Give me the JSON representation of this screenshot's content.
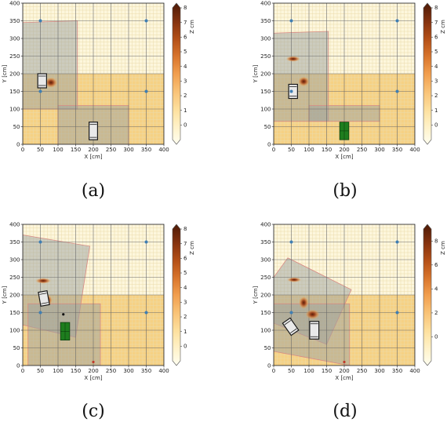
{
  "colors": {
    "background": "#fdf6dc",
    "floor_zone": "#f6cf7e",
    "fov": "#9ba1a0",
    "fov_edge": "#d98a84",
    "grid_major": "#6a6a6a",
    "grid_minor": "#ebdcab",
    "anchor": "#3f7fb3",
    "tag": "#c0392b",
    "robot_fill": "#e9e9e9",
    "robot_stroke": "#1a1a1a",
    "green_box": "#1e7d1e",
    "colormap": [
      "#fffdf0",
      "#fff2c8",
      "#fddf9c",
      "#f9c276",
      "#f19e4e",
      "#d8742b",
      "#b24e17",
      "#82300e",
      "#4d1a07"
    ]
  },
  "chart_data": [
    {
      "type": "heatmap",
      "caption": "(a)",
      "xlabel": "X [cm]",
      "ylabel": "Y [cm]",
      "colorbar_label": "Z cm",
      "xlim": [
        0,
        400
      ],
      "ylim": [
        0,
        400
      ],
      "xticks": [
        "0",
        "50",
        "100",
        "150",
        "200",
        "250",
        "300",
        "350",
        "400"
      ],
      "yticks": [
        "0",
        "50",
        "100",
        "150",
        "200",
        "250",
        "300",
        "350",
        "400"
      ],
      "colorbar_ticks": [
        "8",
        "7",
        "6",
        "5",
        "4",
        "3",
        "2",
        "1",
        "0"
      ],
      "colorbar_tick_positions": [
        8,
        7,
        6,
        5,
        4,
        3,
        2,
        1,
        0
      ],
      "colorbar_range": [
        -1,
        8
      ],
      "grid": true,
      "anchors": [
        [
          50,
          350
        ],
        [
          350,
          350
        ],
        [
          50,
          150
        ],
        [
          350,
          150
        ]
      ],
      "floor_zone": [
        [
          0,
          0
        ],
        [
          400,
          0
        ],
        [
          400,
          200
        ],
        [
          0,
          200
        ]
      ],
      "fov_polygons": [
        [
          [
            0,
            100
          ],
          [
            155,
            100
          ],
          [
            155,
            350
          ],
          [
            0,
            345
          ]
        ],
        [
          [
            100,
            0
          ],
          [
            300,
            0
          ],
          [
            300,
            110
          ],
          [
            100,
            110
          ]
        ]
      ],
      "hotspots": [
        {
          "x": 80,
          "y": 175,
          "rx": 18,
          "ry": 15,
          "z": 7
        }
      ],
      "robots": [
        {
          "x": 55,
          "y": 180,
          "w": 25,
          "h": 40,
          "angle": 0
        },
        {
          "x": 200,
          "y": 38,
          "w": 24,
          "h": 50,
          "angle": 0
        }
      ],
      "green_boxes": [],
      "tags": []
    },
    {
      "type": "heatmap",
      "caption": "(b)",
      "xlabel": "X [cm]",
      "ylabel": "Y [cm]",
      "colorbar_label": "Z cm",
      "xlim": [
        0,
        400
      ],
      "ylim": [
        0,
        400
      ],
      "xticks": [
        "0",
        "50",
        "100",
        "150",
        "200",
        "250",
        "300",
        "350",
        "400"
      ],
      "yticks": [
        "0",
        "50",
        "100",
        "150",
        "200",
        "250",
        "300",
        "350",
        "400"
      ],
      "colorbar_ticks": [
        "8",
        "7",
        "6",
        "5",
        "4",
        "3",
        "2",
        "1",
        "0"
      ],
      "colorbar_tick_positions": [
        8,
        7,
        6,
        5,
        4,
        3,
        2,
        1,
        0
      ],
      "colorbar_range": [
        -1,
        8
      ],
      "grid": true,
      "anchors": [
        [
          50,
          350
        ],
        [
          350,
          350
        ],
        [
          50,
          150
        ],
        [
          350,
          150
        ]
      ],
      "floor_zone": [
        [
          0,
          0
        ],
        [
          400,
          0
        ],
        [
          400,
          200
        ],
        [
          0,
          200
        ]
      ],
      "fov_polygons": [
        [
          [
            0,
            65
          ],
          [
            155,
            65
          ],
          [
            155,
            320
          ],
          [
            0,
            315
          ]
        ],
        [
          [
            100,
            65
          ],
          [
            300,
            65
          ],
          [
            300,
            110
          ],
          [
            100,
            110
          ]
        ]
      ],
      "hotspots": [
        {
          "x": 55,
          "y": 242,
          "rx": 20,
          "ry": 8,
          "z": 6
        },
        {
          "x": 85,
          "y": 178,
          "rx": 16,
          "ry": 14,
          "z": 6
        }
      ],
      "robots": [
        {
          "x": 55,
          "y": 150,
          "w": 25,
          "h": 40,
          "angle": 0
        }
      ],
      "green_boxes": [
        {
          "x": 200,
          "y": 38,
          "w": 26,
          "h": 50,
          "angle": 0
        }
      ],
      "tags": []
    },
    {
      "type": "heatmap",
      "caption": "(c)",
      "xlabel": "X [cm]",
      "ylabel": "Y [cm]",
      "colorbar_label": "Z cm",
      "xlim": [
        0,
        400
      ],
      "ylim": [
        0,
        400
      ],
      "xticks": [
        "0",
        "50",
        "100",
        "150",
        "200",
        "250",
        "300",
        "350",
        "400"
      ],
      "yticks": [
        "0",
        "50",
        "100",
        "150",
        "200",
        "250",
        "300",
        "350",
        "400"
      ],
      "colorbar_ticks": [
        "8",
        "7",
        "6",
        "5",
        "4",
        "3",
        "2",
        "1",
        "0"
      ],
      "colorbar_tick_positions": [
        8,
        7,
        6,
        5,
        4,
        3,
        2,
        1,
        0
      ],
      "colorbar_range": [
        -1,
        8
      ],
      "grid": true,
      "anchors": [
        [
          50,
          350
        ],
        [
          350,
          350
        ],
        [
          50,
          150
        ],
        [
          350,
          150
        ]
      ],
      "floor_zone": [
        [
          0,
          0
        ],
        [
          400,
          0
        ],
        [
          400,
          200
        ],
        [
          0,
          200
        ]
      ],
      "fov_polygons": [
        [
          [
            0,
            370
          ],
          [
            190,
            338
          ],
          [
            150,
            80
          ],
          [
            0,
            115
          ]
        ],
        [
          [
            15,
            175
          ],
          [
            220,
            175
          ],
          [
            220,
            0
          ],
          [
            15,
            0
          ]
        ]
      ],
      "hotspots": [
        {
          "x": 58,
          "y": 240,
          "rx": 22,
          "ry": 8,
          "z": 6
        },
        {
          "x": 70,
          "y": 185,
          "rx": 14,
          "ry": 16,
          "z": 6
        }
      ],
      "robots": [
        {
          "x": 60,
          "y": 190,
          "w": 25,
          "h": 40,
          "angle": 10
        }
      ],
      "green_boxes": [
        {
          "x": 120,
          "y": 97,
          "w": 26,
          "h": 50,
          "angle": 0
        }
      ],
      "tags": [
        {
          "x": 115,
          "y": 145,
          "color": "#111111"
        },
        {
          "x": 200,
          "y": 10,
          "color": "#c0392b"
        }
      ]
    },
    {
      "type": "heatmap",
      "caption": "(d)",
      "xlabel": "X [cm]",
      "ylabel": "Y [cm]",
      "colorbar_label": "Z cm",
      "xlim": [
        0,
        400
      ],
      "ylim": [
        0,
        400
      ],
      "xticks": [
        "0",
        "50",
        "100",
        "150",
        "200",
        "250",
        "300",
        "350",
        "400"
      ],
      "yticks": [
        "0",
        "50",
        "100",
        "150",
        "200",
        "250",
        "300",
        "350",
        "400"
      ],
      "colorbar_ticks": [
        "8",
        "6",
        "4",
        "2",
        "0"
      ],
      "colorbar_tick_positions": [
        8,
        6,
        4,
        2,
        0
      ],
      "colorbar_range": [
        -2,
        9
      ],
      "grid": true,
      "anchors": [
        [
          50,
          350
        ],
        [
          350,
          350
        ],
        [
          50,
          150
        ],
        [
          350,
          150
        ]
      ],
      "floor_zone": [
        [
          0,
          0
        ],
        [
          400,
          0
        ],
        [
          400,
          200
        ],
        [
          0,
          200
        ]
      ],
      "fov_polygons": [
        [
          [
            0,
            250
          ],
          [
            40,
            305
          ],
          [
            220,
            215
          ],
          [
            150,
            60
          ],
          [
            0,
            120
          ]
        ],
        [
          [
            0,
            175
          ],
          [
            215,
            175
          ],
          [
            215,
            0
          ],
          [
            0,
            40
          ]
        ]
      ],
      "hotspots": [
        {
          "x": 58,
          "y": 243,
          "rx": 20,
          "ry": 7,
          "z": 6
        },
        {
          "x": 85,
          "y": 178,
          "rx": 14,
          "ry": 18,
          "z": 6
        },
        {
          "x": 110,
          "y": 145,
          "rx": 20,
          "ry": 14,
          "z": 5
        }
      ],
      "robots": [
        {
          "x": 48,
          "y": 110,
          "w": 26,
          "h": 42,
          "angle": 35
        },
        {
          "x": 115,
          "y": 100,
          "w": 26,
          "h": 50,
          "angle": 0
        }
      ],
      "green_boxes": [],
      "tags": [
        {
          "x": 200,
          "y": 10,
          "color": "#c0392b"
        }
      ]
    }
  ]
}
